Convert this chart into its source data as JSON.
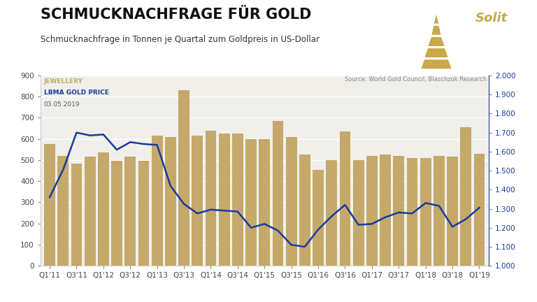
{
  "title": "SCHMUCKNACHFRAGE FÜR GOLD",
  "subtitle": "Schmucknachfrage in Tonnen je Quartal zum Goldpreis in US-Dollar",
  "source_text": "Source: World Gold Council, Blaschzok Research",
  "date_text": "03.05.2019",
  "legend_bar": "JEWELLERY",
  "legend_line": "LBMA GOLD PRICE",
  "bar_color": "#C4A96A",
  "line_color": "#1A3A9C",
  "bg_color": "#FFFFFF",
  "plot_bg_color": "#F0EFEA",
  "grid_color": "#FFFFFF",
  "solit_color": "#C8A84B",
  "bar_values": [
    575,
    520,
    483,
    515,
    535,
    497,
    515,
    495,
    615,
    610,
    830,
    615,
    640,
    625,
    625,
    600,
    600,
    685,
    610,
    525,
    455,
    500,
    635,
    500,
    520,
    525,
    520,
    510,
    510,
    520,
    515,
    655,
    530
  ],
  "line_values": [
    1360,
    1505,
    1700,
    1685,
    1690,
    1610,
    1650,
    1640,
    1635,
    1420,
    1325,
    1275,
    1295,
    1290,
    1285,
    1200,
    1220,
    1185,
    1110,
    1100,
    1190,
    1260,
    1320,
    1215,
    1220,
    1255,
    1280,
    1275,
    1330,
    1315,
    1205,
    1245,
    1305
  ],
  "show_tick_positions": [
    0,
    2,
    4,
    6,
    8,
    10,
    12,
    14,
    16,
    18,
    20,
    22,
    24,
    26,
    28,
    30,
    32
  ],
  "show_tick_labels": [
    "Q1'11",
    "Q3'11",
    "Q1'12",
    "Q3'12",
    "Q1'13",
    "Q3'13",
    "Q1'14",
    "Q3'14",
    "Q1'15",
    "Q3'15",
    "Q1'16",
    "Q3'16",
    "Q1'17",
    "Q3'17",
    "Q1'18",
    "Q3'18",
    "Q1'19"
  ],
  "ylim_left": [
    0,
    900
  ],
  "ylim_right": [
    1000,
    2000
  ],
  "title_fontsize": 15,
  "subtitle_fontsize": 8.5,
  "tick_fontsize": 7.5,
  "annotation_fontsize": 6.5
}
